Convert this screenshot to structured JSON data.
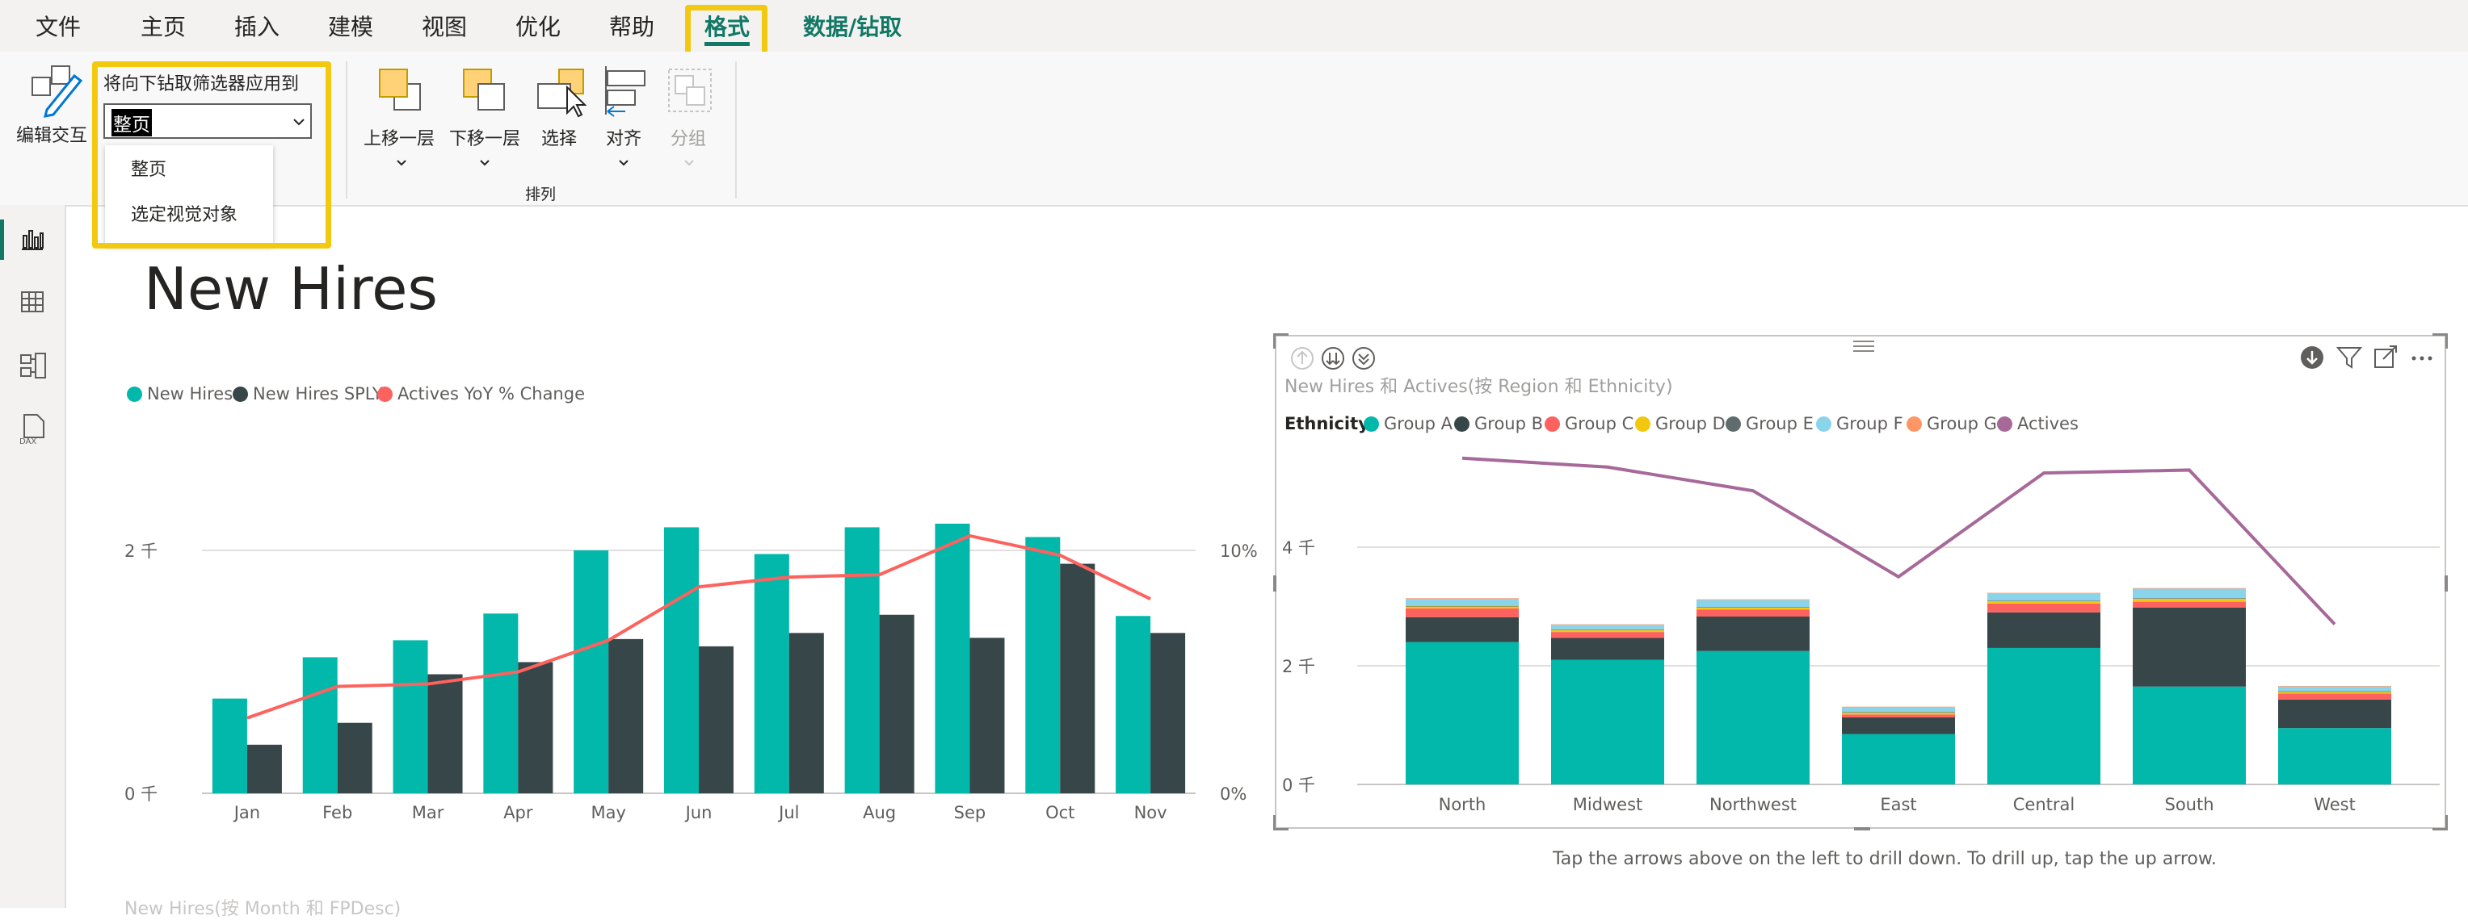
{
  "menu": {
    "items": [
      "文件",
      "主页",
      "插入",
      "建模",
      "视图",
      "优化",
      "帮助"
    ],
    "format_tab": "格式",
    "data_drill_tab": "数据/钻取"
  },
  "ribbon": {
    "edit_interactions": "编辑交互",
    "drill_filter_label": "将向下钻取筛选器应用到",
    "drill_filter_value": "整页",
    "drill_filter_options": [
      "整页",
      "选定视觉对象"
    ],
    "bring_forward": "上移一层",
    "send_backward": "下移一层",
    "select": "选择",
    "align": "对齐",
    "group": "分组",
    "arrange_group": "排列"
  },
  "page": {
    "title": "New Hires",
    "caption": "Tap the arrows above on the left to drill down. To drill up, tap the up arrow.",
    "bottom_visual_title": "New Hires(按 Month 和 FPDesc)"
  },
  "colors": {
    "teal": "#01b8aa",
    "dark": "#374649",
    "red": "#fd625e",
    "yellow": "#f2c80f",
    "gray": "#5f6b6d",
    "lightblue": "#8ad4eb",
    "orange": "#fe9666",
    "purple": "#a66999",
    "highlight": "#f2c811"
  },
  "chart_data": [
    {
      "type": "bar",
      "title": "",
      "legend": [
        "New Hires",
        "New Hires SPLY",
        "Actives YoY % Change"
      ],
      "legend_position": "top-left",
      "categories": [
        "Jan",
        "Feb",
        "Mar",
        "Apr",
        "May",
        "Jun",
        "Jul",
        "Aug",
        "Sep",
        "Oct",
        "Nov"
      ],
      "series": [
        {
          "name": "New Hires",
          "values": [
            780,
            1120,
            1260,
            1480,
            2000,
            2190,
            1970,
            2190,
            2220,
            2110,
            1460
          ]
        },
        {
          "name": "New Hires SPLY",
          "values": [
            400,
            580,
            980,
            1080,
            1270,
            1210,
            1320,
            1470,
            1280,
            1890,
            1320
          ]
        },
        {
          "name": "Actives YoY % Change",
          "axis": "right",
          "values": [
            3.1,
            4.4,
            4.5,
            5.0,
            6.3,
            8.5,
            8.9,
            9.0,
            10.6,
            9.8,
            8.0
          ]
        }
      ],
      "y_ticks": [
        "0 千",
        "2 千"
      ],
      "ylim": [
        0,
        2600
      ],
      "y2_ticks": [
        "0%",
        "10%"
      ],
      "y2lim": [
        0,
        13
      ]
    },
    {
      "type": "bar",
      "title": "New Hires 和 Actives(按 Region 和 Ethnicity)",
      "legend_title": "Ethnicity",
      "legend": [
        "Group A",
        "Group B",
        "Group C",
        "Group D",
        "Group E",
        "Group F",
        "Group G",
        "Actives"
      ],
      "legend_position": "top-left",
      "stacked": true,
      "categories": [
        "North",
        "Midwest",
        "Northwest",
        "East",
        "Central",
        "South",
        "West"
      ],
      "series": [
        {
          "name": "Group A",
          "values": [
            2400,
            2100,
            2250,
            850,
            2300,
            1650,
            950
          ]
        },
        {
          "name": "Group B",
          "values": [
            420,
            370,
            580,
            280,
            600,
            1330,
            480
          ]
        },
        {
          "name": "Group C",
          "values": [
            150,
            100,
            120,
            50,
            150,
            100,
            100
          ]
        },
        {
          "name": "Group D",
          "values": [
            30,
            30,
            30,
            30,
            40,
            50,
            30
          ]
        },
        {
          "name": "Group E",
          "values": [
            10,
            10,
            10,
            10,
            10,
            10,
            10
          ]
        },
        {
          "name": "Group F",
          "values": [
            120,
            80,
            120,
            80,
            120,
            160,
            80
          ]
        },
        {
          "name": "Group G",
          "values": [
            10,
            10,
            10,
            10,
            10,
            10,
            10
          ]
        },
        {
          "name": "Actives",
          "type": "line",
          "values": [
            5500,
            5350,
            4950,
            3500,
            5250,
            5300,
            2700
          ]
        }
      ],
      "y_ticks": [
        "0 千",
        "2 千",
        "4 千"
      ],
      "ylim": [
        0,
        6300
      ]
    }
  ]
}
